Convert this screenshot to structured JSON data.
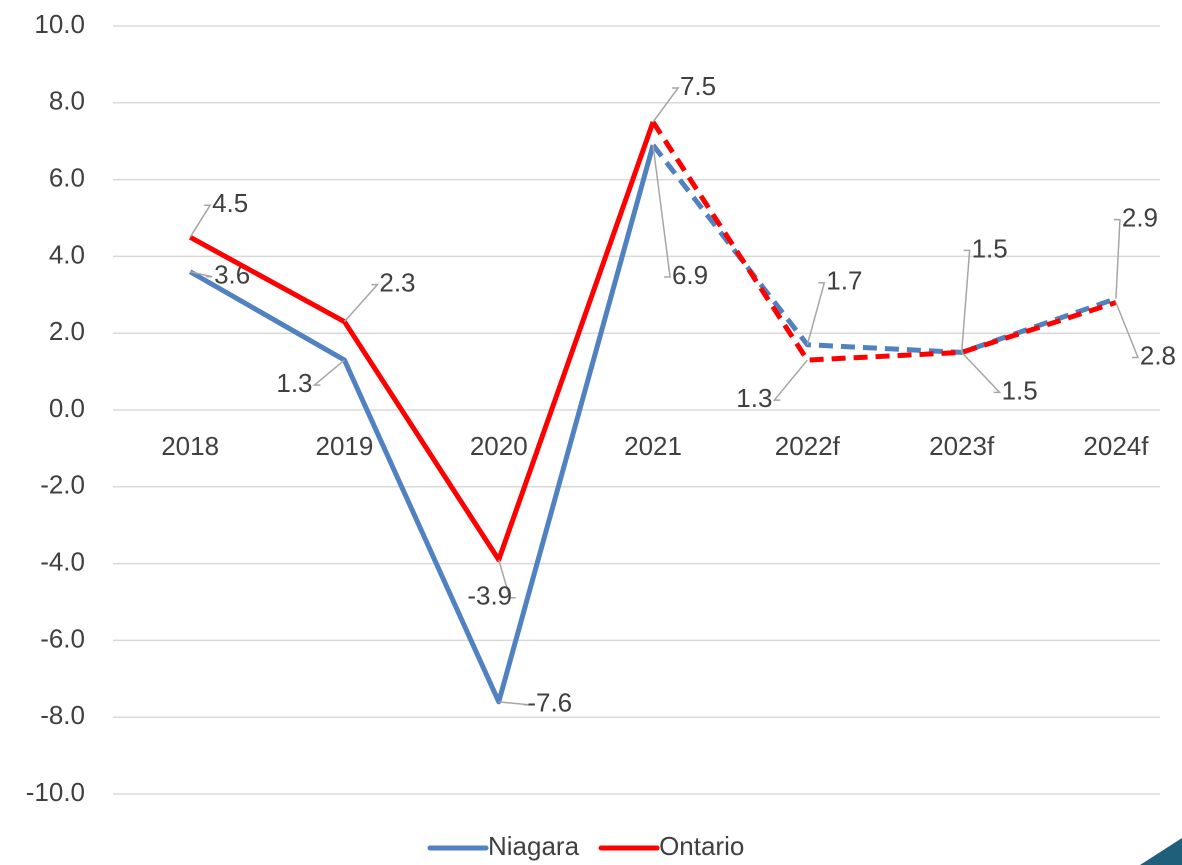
{
  "chart_data": {
    "type": "line",
    "categories": [
      "2018",
      "2019",
      "2020",
      "2021",
      "2022f",
      "2023f",
      "2024f"
    ],
    "series": [
      {
        "name": "Niagara",
        "color": "#5081c0",
        "values": [
          3.6,
          1.3,
          -7.6,
          6.9,
          1.7,
          1.5,
          2.9
        ],
        "dash_from": 3
      },
      {
        "name": "Ontario",
        "color": "#ff0000",
        "values": [
          4.5,
          2.3,
          -3.9,
          7.5,
          1.3,
          1.5,
          2.8
        ],
        "dash_from": 3
      }
    ],
    "ylim": [
      -10,
      10
    ],
    "yticks": [
      {
        "value": -10,
        "label": "-10.0"
      },
      {
        "value": -8,
        "label": "-8.0"
      },
      {
        "value": -6,
        "label": "-6.0"
      },
      {
        "value": -4,
        "label": "-4.0"
      },
      {
        "value": -2,
        "label": "-2.0"
      },
      {
        "value": 0,
        "label": "0.0"
      },
      {
        "value": 2,
        "label": "2.0"
      },
      {
        "value": 4,
        "label": "4.0"
      },
      {
        "value": 6,
        "label": "6.0"
      },
      {
        "value": 8,
        "label": "8.0"
      },
      {
        "value": 10,
        "label": "10.0"
      }
    ],
    "grid": true,
    "legend": "bottom"
  }
}
